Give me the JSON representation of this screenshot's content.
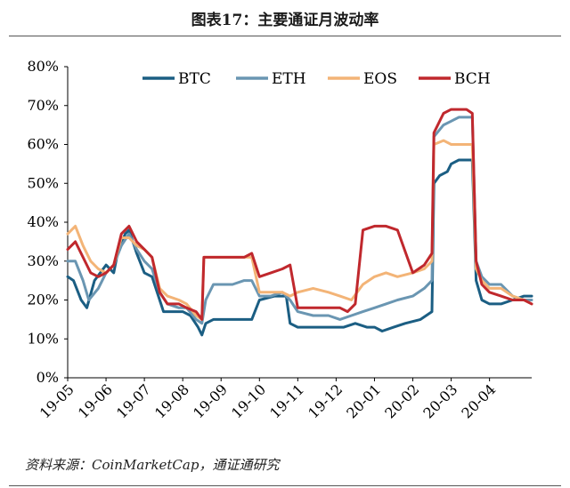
{
  "title": "图表17：主要通证月波动率",
  "source": "资料来源：CoinMarketCap，通证通研究",
  "chart_data": {
    "type": "line",
    "title": "图表17：主要通证月波动率",
    "xlabel": "",
    "ylabel": "",
    "ylim": [
      0,
      80
    ],
    "y_ticks": [
      "0%",
      "10%",
      "20%",
      "30%",
      "40%",
      "50%",
      "60%",
      "70%",
      "80%"
    ],
    "x_ticks": [
      "19-05",
      "19-06",
      "19-07",
      "19-08",
      "19-09",
      "19-10",
      "19-11",
      "19-12",
      "20-01",
      "20-02",
      "20-03",
      "20-04"
    ],
    "legend_position": "top",
    "grid": false,
    "series": [
      {
        "name": "BTC",
        "color": "#1b5e83",
        "points": [
          [
            0.0,
            26
          ],
          [
            0.15,
            25
          ],
          [
            0.35,
            20
          ],
          [
            0.5,
            18
          ],
          [
            0.7,
            25
          ],
          [
            1.0,
            29
          ],
          [
            1.2,
            27
          ],
          [
            1.3,
            32
          ],
          [
            1.5,
            37
          ],
          [
            1.6,
            38
          ],
          [
            1.8,
            32
          ],
          [
            2.0,
            27
          ],
          [
            2.2,
            26
          ],
          [
            2.4,
            20
          ],
          [
            2.5,
            17
          ],
          [
            2.7,
            17
          ],
          [
            3.0,
            17
          ],
          [
            3.2,
            16
          ],
          [
            3.4,
            13
          ],
          [
            3.5,
            11
          ],
          [
            3.6,
            14
          ],
          [
            3.8,
            15
          ],
          [
            4.0,
            15
          ],
          [
            4.2,
            15
          ],
          [
            4.4,
            15
          ],
          [
            4.5,
            15
          ],
          [
            4.8,
            15
          ],
          [
            5.0,
            20
          ],
          [
            5.4,
            21
          ],
          [
            5.7,
            21
          ],
          [
            5.8,
            14
          ],
          [
            6.0,
            13
          ],
          [
            6.5,
            13
          ],
          [
            6.8,
            13
          ],
          [
            7.0,
            13
          ],
          [
            7.2,
            13
          ],
          [
            7.5,
            14
          ],
          [
            7.8,
            13
          ],
          [
            8.0,
            13
          ],
          [
            8.2,
            12
          ],
          [
            8.5,
            13
          ],
          [
            8.8,
            14
          ],
          [
            9.2,
            15
          ],
          [
            9.5,
            17
          ],
          [
            9.55,
            50
          ],
          [
            9.7,
            52
          ],
          [
            9.9,
            53
          ],
          [
            10.0,
            55
          ],
          [
            10.2,
            56
          ],
          [
            10.4,
            56
          ],
          [
            10.55,
            56
          ],
          [
            10.65,
            25
          ],
          [
            10.8,
            20
          ],
          [
            11.0,
            19
          ],
          [
            11.3,
            19
          ],
          [
            11.6,
            20
          ],
          [
            11.9,
            21
          ],
          [
            12.1,
            21
          ]
        ]
      },
      {
        "name": "ETH",
        "color": "#6a96b2",
        "points": [
          [
            0.0,
            30
          ],
          [
            0.2,
            30
          ],
          [
            0.4,
            25
          ],
          [
            0.55,
            20
          ],
          [
            0.8,
            23
          ],
          [
            1.0,
            27
          ],
          [
            1.2,
            29
          ],
          [
            1.4,
            34
          ],
          [
            1.6,
            37
          ],
          [
            1.8,
            33
          ],
          [
            2.0,
            30
          ],
          [
            2.2,
            28
          ],
          [
            2.4,
            22
          ],
          [
            2.6,
            19
          ],
          [
            2.9,
            18
          ],
          [
            3.1,
            18
          ],
          [
            3.35,
            15
          ],
          [
            3.5,
            14
          ],
          [
            3.6,
            20
          ],
          [
            3.8,
            24
          ],
          [
            4.0,
            24
          ],
          [
            4.3,
            24
          ],
          [
            4.6,
            25
          ],
          [
            4.8,
            25
          ],
          [
            5.0,
            21
          ],
          [
            5.3,
            21
          ],
          [
            5.6,
            22
          ],
          [
            5.8,
            20
          ],
          [
            6.0,
            17
          ],
          [
            6.4,
            16
          ],
          [
            6.8,
            16
          ],
          [
            7.1,
            15
          ],
          [
            7.4,
            16
          ],
          [
            7.7,
            17
          ],
          [
            8.0,
            18
          ],
          [
            8.3,
            19
          ],
          [
            8.6,
            20
          ],
          [
            9.0,
            21
          ],
          [
            9.3,
            23
          ],
          [
            9.5,
            25
          ],
          [
            9.55,
            62
          ],
          [
            9.8,
            65
          ],
          [
            10.0,
            66
          ],
          [
            10.2,
            67
          ],
          [
            10.4,
            67
          ],
          [
            10.55,
            67
          ],
          [
            10.65,
            30
          ],
          [
            10.8,
            26
          ],
          [
            11.0,
            24
          ],
          [
            11.3,
            24
          ],
          [
            11.6,
            21
          ],
          [
            11.9,
            20
          ],
          [
            12.1,
            20
          ]
        ]
      },
      {
        "name": "EOS",
        "color": "#f3b477",
        "points": [
          [
            0.0,
            37
          ],
          [
            0.2,
            39
          ],
          [
            0.4,
            34
          ],
          [
            0.6,
            30
          ],
          [
            0.8,
            28
          ],
          [
            1.0,
            27
          ],
          [
            1.2,
            29
          ],
          [
            1.4,
            36
          ],
          [
            1.6,
            36
          ],
          [
            1.8,
            34
          ],
          [
            2.0,
            33
          ],
          [
            2.2,
            31
          ],
          [
            2.4,
            23
          ],
          [
            2.6,
            21
          ],
          [
            2.9,
            20
          ],
          [
            3.1,
            19
          ],
          [
            3.35,
            16
          ],
          [
            3.5,
            15
          ],
          [
            3.55,
            31
          ],
          [
            3.8,
            31
          ],
          [
            4.2,
            31
          ],
          [
            4.6,
            31
          ],
          [
            4.8,
            31
          ],
          [
            5.0,
            22
          ],
          [
            5.3,
            22
          ],
          [
            5.6,
            22
          ],
          [
            5.8,
            21
          ],
          [
            6.0,
            22
          ],
          [
            6.4,
            23
          ],
          [
            6.8,
            22
          ],
          [
            7.1,
            21
          ],
          [
            7.4,
            20
          ],
          [
            7.7,
            24
          ],
          [
            8.0,
            26
          ],
          [
            8.3,
            27
          ],
          [
            8.6,
            26
          ],
          [
            9.0,
            27
          ],
          [
            9.3,
            28
          ],
          [
            9.5,
            30
          ],
          [
            9.55,
            60
          ],
          [
            9.8,
            61
          ],
          [
            10.0,
            60
          ],
          [
            10.2,
            60
          ],
          [
            10.4,
            60
          ],
          [
            10.55,
            60
          ],
          [
            10.65,
            28
          ],
          [
            10.8,
            25
          ],
          [
            11.0,
            23
          ],
          [
            11.3,
            23
          ],
          [
            11.6,
            21
          ],
          [
            11.9,
            20
          ],
          [
            12.1,
            19
          ]
        ]
      },
      {
        "name": "BCH",
        "color": "#c0282d",
        "points": [
          [
            0.0,
            33
          ],
          [
            0.2,
            35
          ],
          [
            0.4,
            31
          ],
          [
            0.6,
            27
          ],
          [
            0.8,
            26
          ],
          [
            1.0,
            27
          ],
          [
            1.2,
            29
          ],
          [
            1.4,
            37
          ],
          [
            1.6,
            39
          ],
          [
            1.8,
            35
          ],
          [
            2.0,
            33
          ],
          [
            2.2,
            31
          ],
          [
            2.4,
            22
          ],
          [
            2.6,
            19
          ],
          [
            2.9,
            19
          ],
          [
            3.1,
            18
          ],
          [
            3.35,
            17
          ],
          [
            3.5,
            15
          ],
          [
            3.55,
            31
          ],
          [
            3.8,
            31
          ],
          [
            4.2,
            31
          ],
          [
            4.6,
            31
          ],
          [
            4.8,
            32
          ],
          [
            5.0,
            26
          ],
          [
            5.3,
            27
          ],
          [
            5.6,
            28
          ],
          [
            5.8,
            29
          ],
          [
            6.0,
            18
          ],
          [
            6.4,
            18
          ],
          [
            6.8,
            18
          ],
          [
            7.1,
            18
          ],
          [
            7.3,
            17
          ],
          [
            7.5,
            19
          ],
          [
            7.7,
            38
          ],
          [
            8.0,
            39
          ],
          [
            8.3,
            39
          ],
          [
            8.6,
            38
          ],
          [
            9.0,
            27
          ],
          [
            9.3,
            29
          ],
          [
            9.5,
            32
          ],
          [
            9.55,
            63
          ],
          [
            9.8,
            68
          ],
          [
            10.0,
            69
          ],
          [
            10.2,
            69
          ],
          [
            10.4,
            69
          ],
          [
            10.55,
            68
          ],
          [
            10.65,
            30
          ],
          [
            10.8,
            24
          ],
          [
            11.0,
            22
          ],
          [
            11.3,
            21
          ],
          [
            11.6,
            20
          ],
          [
            11.9,
            20
          ],
          [
            12.1,
            19
          ]
        ]
      }
    ]
  }
}
